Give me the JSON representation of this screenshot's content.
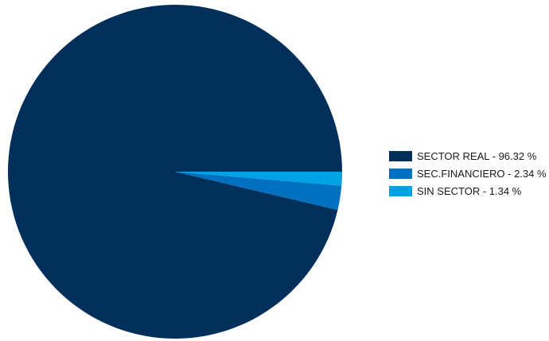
{
  "chart_data": {
    "type": "pie",
    "title": "",
    "legend_position": "right",
    "series": [
      {
        "categories": [
          "SECTOR REAL",
          "SEC.FINANCIERO",
          "SIN SECTOR"
        ],
        "values": [
          96.32,
          2.34,
          1.34
        ],
        "colors": [
          "#002F5B",
          "#0170BF",
          "#00A2E6"
        ]
      }
    ],
    "legend": [
      {
        "label": "SECTOR REAL - 96.32 %",
        "color": "#002F5B"
      },
      {
        "label": "SEC.FINANCIERO - 2.34 %",
        "color": "#0170BF"
      },
      {
        "label": "SIN SECTOR - 1.34 %",
        "color": "#00A2E6"
      }
    ]
  }
}
